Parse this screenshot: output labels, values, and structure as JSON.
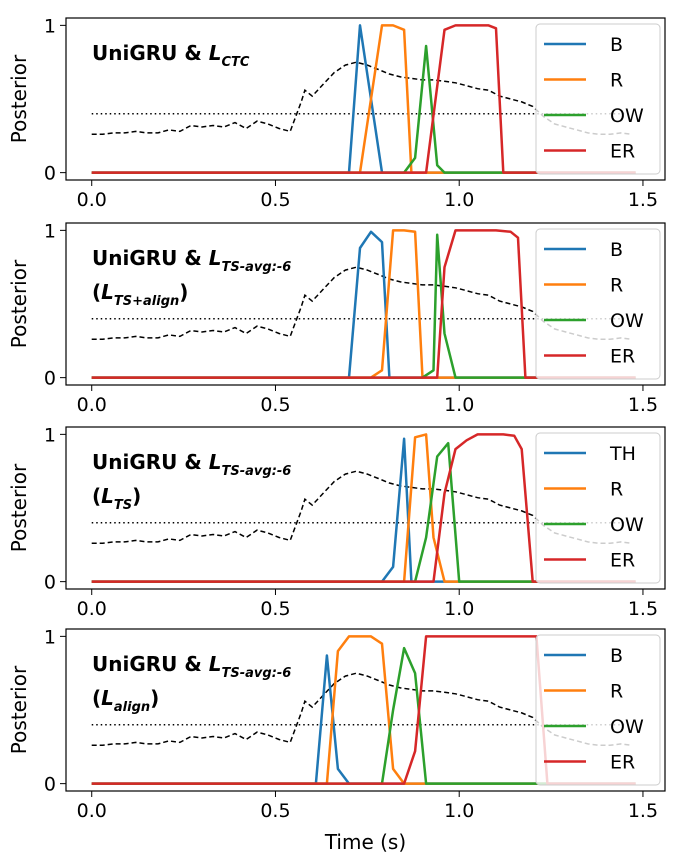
{
  "chart_data": [
    {
      "type": "line",
      "title_lines": [
        {
          "prefix": "UniGRU & ",
          "sym": "L",
          "sub": "CTC",
          "close": ""
        }
      ],
      "ylabel": "Posterior",
      "xlabel": "",
      "xlim": [
        -0.07,
        1.56
      ],
      "ylim": [
        -0.05,
        1.05
      ],
      "xticks": [
        0.0,
        0.5,
        1.0,
        1.5
      ],
      "xtick_labels": [
        "0.0",
        "0.5",
        "1.0",
        "1.5"
      ],
      "yticks": [
        0,
        1
      ],
      "ytick_labels": [
        "0",
        "1"
      ],
      "threshold": 0.4,
      "reference_x": [
        0.0,
        0.03,
        0.06,
        0.09,
        0.12,
        0.15,
        0.18,
        0.21,
        0.24,
        0.27,
        0.3,
        0.33,
        0.36,
        0.39,
        0.42,
        0.45,
        0.48,
        0.51,
        0.54,
        0.57,
        0.58,
        0.6,
        0.63,
        0.66,
        0.69,
        0.72,
        0.75,
        0.78,
        0.81,
        0.84,
        0.87,
        0.9,
        0.93,
        0.96,
        0.99,
        1.02,
        1.05,
        1.08,
        1.11,
        1.14,
        1.17,
        1.2,
        1.23,
        1.26,
        1.29,
        1.32,
        1.35,
        1.38,
        1.41,
        1.44,
        1.47
      ],
      "reference_y": [
        0.26,
        0.26,
        0.27,
        0.27,
        0.28,
        0.27,
        0.27,
        0.29,
        0.28,
        0.32,
        0.31,
        0.32,
        0.31,
        0.34,
        0.3,
        0.35,
        0.33,
        0.3,
        0.28,
        0.48,
        0.56,
        0.52,
        0.6,
        0.68,
        0.73,
        0.75,
        0.73,
        0.7,
        0.67,
        0.65,
        0.64,
        0.63,
        0.63,
        0.62,
        0.61,
        0.59,
        0.57,
        0.56,
        0.52,
        0.5,
        0.48,
        0.45,
        0.38,
        0.33,
        0.31,
        0.29,
        0.27,
        0.26,
        0.26,
        0.27,
        0.26
      ],
      "series": [
        {
          "name": "B",
          "color": "#1f77b4",
          "x": [
            0.0,
            0.7,
            0.73,
            0.76,
            0.79,
            1.48
          ],
          "y": [
            0,
            0,
            1.0,
            0.5,
            0,
            0
          ]
        },
        {
          "name": "R",
          "color": "#ff7f0e",
          "x": [
            0.0,
            0.73,
            0.79,
            0.82,
            0.85,
            0.87,
            1.48
          ],
          "y": [
            0,
            0,
            1.0,
            1.0,
            0.97,
            0,
            0
          ]
        },
        {
          "name": "OW",
          "color": "#2ca02c",
          "x": [
            0.0,
            0.85,
            0.88,
            0.91,
            0.94,
            0.96,
            1.48
          ],
          "y": [
            0,
            0,
            0.1,
            0.86,
            0.05,
            0,
            0
          ]
        },
        {
          "name": "ER",
          "color": "#d62728",
          "x": [
            0.0,
            0.91,
            0.96,
            0.99,
            1.02,
            1.05,
            1.08,
            1.1,
            1.12,
            1.48
          ],
          "y": [
            0,
            0,
            0.97,
            1.0,
            1.0,
            1.0,
            1.0,
            0.98,
            0,
            0
          ]
        }
      ]
    },
    {
      "type": "line",
      "title_lines": [
        {
          "prefix": "UniGRU & ",
          "sym": "L",
          "sub": "TS-avg:-6",
          "close": ""
        },
        {
          "prefix": "(",
          "sym": "L",
          "sub": "TS+align",
          "close": ")"
        }
      ],
      "ylabel": "Posterior",
      "xlabel": "",
      "xlim": [
        -0.07,
        1.56
      ],
      "ylim": [
        -0.05,
        1.05
      ],
      "xticks": [
        0.0,
        0.5,
        1.0,
        1.5
      ],
      "xtick_labels": [
        "0.0",
        "0.5",
        "1.0",
        "1.5"
      ],
      "yticks": [
        0,
        1
      ],
      "ytick_labels": [
        "0",
        "1"
      ],
      "threshold": 0.4,
      "reference_x": [
        0.0,
        0.03,
        0.06,
        0.09,
        0.12,
        0.15,
        0.18,
        0.21,
        0.24,
        0.27,
        0.3,
        0.33,
        0.36,
        0.39,
        0.42,
        0.45,
        0.48,
        0.51,
        0.54,
        0.57,
        0.58,
        0.6,
        0.63,
        0.66,
        0.69,
        0.72,
        0.75,
        0.78,
        0.81,
        0.84,
        0.87,
        0.9,
        0.93,
        0.96,
        0.99,
        1.02,
        1.05,
        1.08,
        1.11,
        1.14,
        1.17,
        1.2,
        1.23,
        1.26,
        1.29,
        1.32,
        1.35,
        1.38,
        1.41,
        1.44,
        1.47
      ],
      "reference_y": [
        0.26,
        0.26,
        0.27,
        0.27,
        0.28,
        0.27,
        0.27,
        0.29,
        0.28,
        0.32,
        0.31,
        0.32,
        0.31,
        0.34,
        0.3,
        0.35,
        0.33,
        0.3,
        0.28,
        0.48,
        0.56,
        0.52,
        0.6,
        0.68,
        0.73,
        0.75,
        0.73,
        0.7,
        0.67,
        0.65,
        0.64,
        0.63,
        0.63,
        0.62,
        0.61,
        0.59,
        0.57,
        0.56,
        0.52,
        0.5,
        0.48,
        0.45,
        0.38,
        0.33,
        0.31,
        0.29,
        0.27,
        0.26,
        0.26,
        0.27,
        0.26
      ],
      "series": [
        {
          "name": "B",
          "color": "#1f77b4",
          "x": [
            0.0,
            0.7,
            0.73,
            0.76,
            0.79,
            0.81,
            1.48
          ],
          "y": [
            0,
            0,
            0.88,
            0.99,
            0.92,
            0,
            0
          ]
        },
        {
          "name": "R",
          "color": "#ff7f0e",
          "x": [
            0.0,
            0.76,
            0.79,
            0.82,
            0.85,
            0.88,
            0.9,
            1.48
          ],
          "y": [
            0,
            0,
            0.05,
            1.0,
            1.0,
            0.99,
            0,
            0
          ]
        },
        {
          "name": "OW",
          "color": "#2ca02c",
          "x": [
            0.0,
            0.9,
            0.93,
            0.94,
            0.96,
            0.99,
            1.48
          ],
          "y": [
            0,
            0,
            0.05,
            0.97,
            0.3,
            0,
            0
          ]
        },
        {
          "name": "ER",
          "color": "#d62728",
          "x": [
            0.0,
            0.94,
            0.96,
            0.99,
            1.02,
            1.1,
            1.14,
            1.16,
            1.18,
            1.48
          ],
          "y": [
            0,
            0,
            0.75,
            1.0,
            1.0,
            1.0,
            0.99,
            0.95,
            0,
            0
          ]
        }
      ]
    },
    {
      "type": "line",
      "title_lines": [
        {
          "prefix": "UniGRU & ",
          "sym": "L",
          "sub": "TS-avg:-6",
          "close": ""
        },
        {
          "prefix": "(",
          "sym": "L",
          "sub": "TS",
          "close": ")"
        }
      ],
      "ylabel": "Posterior",
      "xlabel": "",
      "xlim": [
        -0.07,
        1.56
      ],
      "ylim": [
        -0.05,
        1.05
      ],
      "xticks": [
        0.0,
        0.5,
        1.0,
        1.5
      ],
      "xtick_labels": [
        "0.0",
        "0.5",
        "1.0",
        "1.5"
      ],
      "yticks": [
        0,
        1
      ],
      "ytick_labels": [
        "0",
        "1"
      ],
      "threshold": 0.4,
      "reference_x": [
        0.0,
        0.03,
        0.06,
        0.09,
        0.12,
        0.15,
        0.18,
        0.21,
        0.24,
        0.27,
        0.3,
        0.33,
        0.36,
        0.39,
        0.42,
        0.45,
        0.48,
        0.51,
        0.54,
        0.57,
        0.58,
        0.6,
        0.63,
        0.66,
        0.69,
        0.72,
        0.75,
        0.78,
        0.81,
        0.84,
        0.87,
        0.9,
        0.93,
        0.96,
        0.99,
        1.02,
        1.05,
        1.08,
        1.11,
        1.14,
        1.17,
        1.2,
        1.23,
        1.26,
        1.29,
        1.32,
        1.35,
        1.38,
        1.41,
        1.44,
        1.47
      ],
      "reference_y": [
        0.26,
        0.26,
        0.27,
        0.27,
        0.28,
        0.27,
        0.27,
        0.29,
        0.28,
        0.32,
        0.31,
        0.32,
        0.31,
        0.34,
        0.3,
        0.35,
        0.33,
        0.3,
        0.28,
        0.48,
        0.56,
        0.52,
        0.6,
        0.68,
        0.73,
        0.75,
        0.73,
        0.7,
        0.67,
        0.65,
        0.64,
        0.63,
        0.63,
        0.62,
        0.61,
        0.59,
        0.57,
        0.56,
        0.52,
        0.5,
        0.48,
        0.45,
        0.38,
        0.33,
        0.31,
        0.29,
        0.27,
        0.26,
        0.26,
        0.27,
        0.26
      ],
      "series": [
        {
          "name": "TH",
          "color": "#1f77b4",
          "x": [
            0.0,
            0.79,
            0.82,
            0.85,
            0.87,
            1.48
          ],
          "y": [
            0,
            0,
            0.1,
            0.97,
            0,
            0
          ]
        },
        {
          "name": "R",
          "color": "#ff7f0e",
          "x": [
            0.0,
            0.85,
            0.88,
            0.91,
            0.93,
            0.96,
            1.48
          ],
          "y": [
            0,
            0,
            0.98,
            1.0,
            0.3,
            0,
            0
          ]
        },
        {
          "name": "OW",
          "color": "#2ca02c",
          "x": [
            0.0,
            0.88,
            0.91,
            0.94,
            0.97,
            1.0,
            1.48
          ],
          "y": [
            0,
            0,
            0.3,
            0.85,
            0.94,
            0,
            0
          ]
        },
        {
          "name": "ER",
          "color": "#d62728",
          "x": [
            0.0,
            0.93,
            0.96,
            0.99,
            1.02,
            1.05,
            1.12,
            1.15,
            1.17,
            1.2,
            1.48
          ],
          "y": [
            0,
            0,
            0.6,
            0.9,
            0.96,
            1.0,
            1.0,
            0.99,
            0.9,
            0,
            0
          ]
        }
      ]
    },
    {
      "type": "line",
      "title_lines": [
        {
          "prefix": "UniGRU & ",
          "sym": "L",
          "sub": "TS-avg:-6",
          "close": ""
        },
        {
          "prefix": "(",
          "sym": "L",
          "sub": "align",
          "close": ")"
        }
      ],
      "ylabel": "Posterior",
      "xlabel": "Time (s)",
      "xlim": [
        -0.07,
        1.56
      ],
      "ylim": [
        -0.05,
        1.05
      ],
      "xticks": [
        0.0,
        0.5,
        1.0,
        1.5
      ],
      "xtick_labels": [
        "0.0",
        "0.5",
        "1.0",
        "1.5"
      ],
      "yticks": [
        0,
        1
      ],
      "ytick_labels": [
        "0",
        "1"
      ],
      "threshold": 0.4,
      "reference_x": [
        0.0,
        0.03,
        0.06,
        0.09,
        0.12,
        0.15,
        0.18,
        0.21,
        0.24,
        0.27,
        0.3,
        0.33,
        0.36,
        0.39,
        0.42,
        0.45,
        0.48,
        0.51,
        0.54,
        0.57,
        0.58,
        0.6,
        0.63,
        0.66,
        0.69,
        0.72,
        0.75,
        0.78,
        0.81,
        0.84,
        0.87,
        0.9,
        0.93,
        0.96,
        0.99,
        1.02,
        1.05,
        1.08,
        1.11,
        1.14,
        1.17,
        1.2,
        1.23,
        1.26,
        1.29,
        1.32,
        1.35,
        1.38,
        1.41,
        1.44,
        1.47
      ],
      "reference_y": [
        0.26,
        0.26,
        0.27,
        0.27,
        0.28,
        0.27,
        0.27,
        0.29,
        0.28,
        0.32,
        0.31,
        0.32,
        0.31,
        0.34,
        0.3,
        0.35,
        0.33,
        0.3,
        0.28,
        0.48,
        0.56,
        0.52,
        0.6,
        0.68,
        0.73,
        0.75,
        0.73,
        0.7,
        0.67,
        0.65,
        0.64,
        0.63,
        0.63,
        0.62,
        0.61,
        0.59,
        0.57,
        0.56,
        0.52,
        0.5,
        0.48,
        0.45,
        0.38,
        0.33,
        0.31,
        0.29,
        0.27,
        0.26,
        0.26,
        0.27,
        0.26
      ],
      "series": [
        {
          "name": "B",
          "color": "#1f77b4",
          "x": [
            0.0,
            0.61,
            0.64,
            0.67,
            0.7,
            1.48
          ],
          "y": [
            0,
            0,
            0.87,
            0.1,
            0,
            0
          ]
        },
        {
          "name": "R",
          "color": "#ff7f0e",
          "x": [
            0.0,
            0.64,
            0.67,
            0.7,
            0.76,
            0.79,
            0.82,
            0.85,
            1.48
          ],
          "y": [
            0,
            0,
            0.9,
            1.0,
            1.0,
            0.95,
            0.1,
            0,
            0
          ]
        },
        {
          "name": "OW",
          "color": "#2ca02c",
          "x": [
            0.0,
            0.79,
            0.82,
            0.85,
            0.88,
            0.91,
            1.48
          ],
          "y": [
            0,
            0,
            0.5,
            0.92,
            0.75,
            0,
            0
          ]
        },
        {
          "name": "ER",
          "color": "#d62728",
          "x": [
            0.0,
            0.85,
            0.88,
            0.91,
            1.21,
            1.24,
            1.48
          ],
          "y": [
            0,
            0,
            0.22,
            1.0,
            1.0,
            0,
            0
          ]
        }
      ]
    }
  ]
}
